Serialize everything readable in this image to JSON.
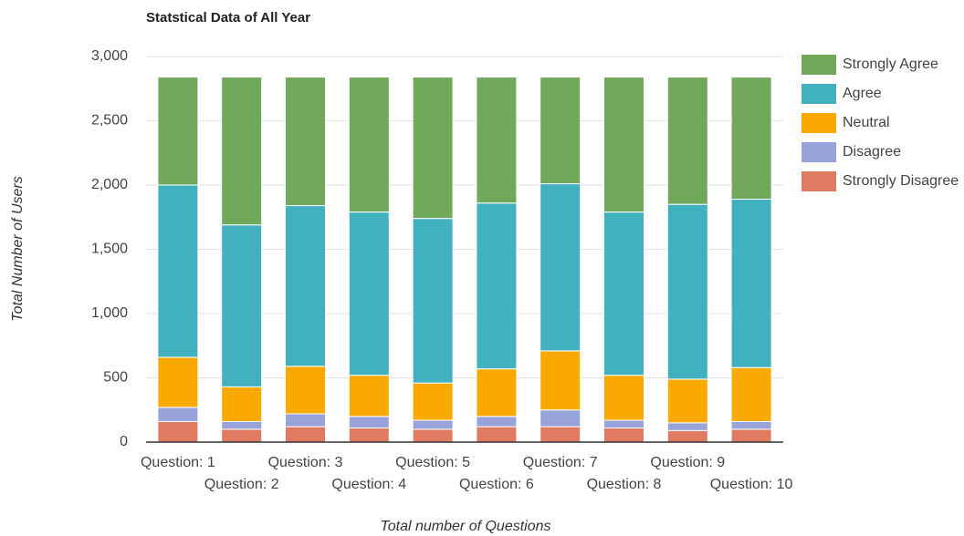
{
  "chart_data": {
    "type": "stacked_bar",
    "title": "Statstical Data of All Year",
    "y_label": "Total Number of Users",
    "x_label": "Total number of Questions",
    "categories": [
      "Question: 1",
      "Question: 2",
      "Question: 3",
      "Question: 4",
      "Question: 5",
      "Question: 6",
      "Question: 7",
      "Question: 8",
      "Question: 9",
      "Question: 10"
    ],
    "series": [
      {
        "name": "Strongly Agree",
        "color": "#70a85c",
        "values": [
          840,
          1150,
          1000,
          1050,
          1100,
          980,
          830,
          1050,
          990,
          950
        ]
      },
      {
        "name": "Agree",
        "color": "#41b1bf",
        "values": [
          1340,
          1260,
          1250,
          1270,
          1280,
          1290,
          1300,
          1270,
          1360,
          1310
        ]
      },
      {
        "name": "Neutral",
        "color": "#f9a900",
        "values": [
          390,
          270,
          370,
          320,
          290,
          370,
          460,
          350,
          340,
          420
        ]
      },
      {
        "name": "Disagree",
        "color": "#97a3d9",
        "values": [
          110,
          60,
          100,
          90,
          70,
          80,
          130,
          60,
          60,
          60
        ]
      },
      {
        "name": "Strongly Disagree",
        "color": "#e07a63",
        "values": [
          160,
          100,
          120,
          110,
          100,
          120,
          120,
          110,
          90,
          100
        ]
      }
    ],
    "ylim": [
      0,
      3000
    ],
    "yticks": [
      0,
      500,
      {
        "value": 1000,
        "label": "1,000"
      },
      {
        "value": 1500,
        "label": "1,500"
      },
      {
        "value": 2000,
        "label": "2,000"
      },
      {
        "value": 2500,
        "label": "2,500"
      },
      {
        "value": 3000,
        "label": "3,000"
      }
    ],
    "grid": true,
    "legend": "right"
  }
}
